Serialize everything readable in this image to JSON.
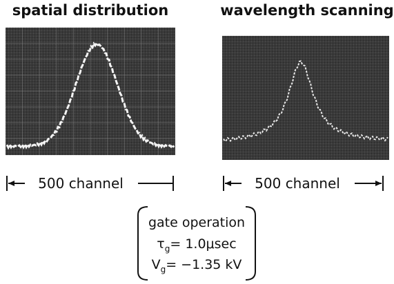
{
  "labels": {
    "left_title": "spatial distribution",
    "right_title": "wavelength scanning",
    "left_scale": "500 channel",
    "right_scale": "500 channel"
  },
  "conditions": {
    "title": "gate operation",
    "tau": {
      "symbol": "τ",
      "subscript": "g",
      "value": "= 1.0μsec"
    },
    "voltage": {
      "symbol": "V",
      "subscript": "g",
      "value": "= −1.35 kV"
    }
  }
}
